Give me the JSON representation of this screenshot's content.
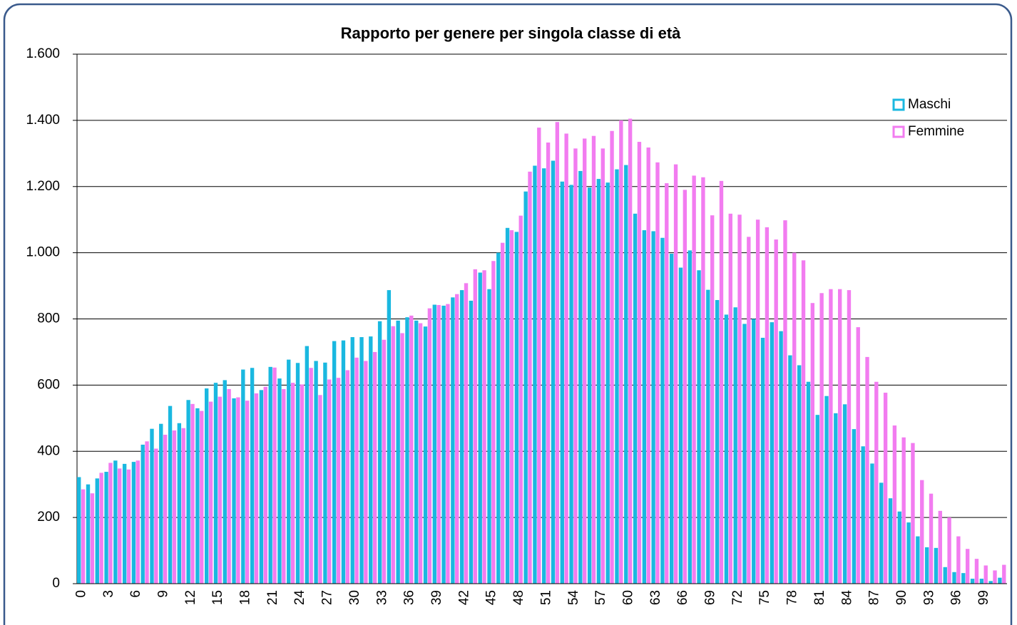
{
  "chart_data": {
    "type": "bar",
    "title": "Rapporto per genere per singola classe di età",
    "categories": [
      "0",
      null,
      null,
      "3",
      null,
      null,
      "6",
      null,
      null,
      "9",
      null,
      null,
      "12",
      null,
      null,
      "15",
      null,
      null,
      "18",
      null,
      null,
      "21",
      null,
      null,
      "24",
      null,
      null,
      "27",
      null,
      null,
      "30",
      null,
      null,
      "33",
      null,
      null,
      "36",
      null,
      null,
      "39",
      null,
      null,
      "42",
      null,
      null,
      "45",
      null,
      null,
      "48",
      null,
      null,
      "51",
      null,
      null,
      "54",
      null,
      null,
      "57",
      null,
      null,
      "60",
      null,
      null,
      "63",
      null,
      null,
      "66",
      null,
      null,
      "69",
      null,
      null,
      "72",
      null,
      null,
      "75",
      null,
      null,
      "78",
      null,
      null,
      "81",
      null,
      null,
      "84",
      null,
      null,
      "87",
      null,
      null,
      "90",
      null,
      null,
      "93",
      null,
      null,
      "96",
      null,
      null,
      "99",
      null,
      null
    ],
    "series": [
      {
        "name": "Maschi",
        "color": "#1ab8e0",
        "values": [
          322,
          300,
          318,
          338,
          372,
          362,
          368,
          420,
          468,
          483,
          537,
          485,
          555,
          530,
          590,
          607,
          615,
          560,
          647,
          652,
          585,
          655,
          620,
          677,
          667,
          718,
          673,
          668,
          733,
          735,
          745,
          745,
          747,
          793,
          887,
          795,
          805,
          795,
          777,
          843,
          840,
          865,
          887,
          855,
          940,
          890,
          1000,
          1075,
          1063,
          1185,
          1263,
          1255,
          1278,
          1215,
          1205,
          1247,
          1197,
          1223,
          1212,
          1252,
          1265,
          1118,
          1068,
          1065,
          1045,
          997,
          955,
          1007,
          947,
          888,
          857,
          813,
          835,
          785,
          800,
          743,
          790,
          763,
          690,
          660,
          610,
          510,
          567,
          515,
          542,
          467,
          415,
          363,
          305,
          258,
          218,
          185,
          143,
          110,
          108,
          50,
          35,
          32,
          15,
          15,
          8,
          18
        ]
      },
      {
        "name": "Femmine",
        "color": "#f27cf0",
        "values": [
          285,
          273,
          335,
          365,
          348,
          345,
          372,
          430,
          408,
          450,
          463,
          470,
          543,
          522,
          550,
          565,
          588,
          563,
          553,
          575,
          595,
          653,
          588,
          607,
          602,
          652,
          570,
          617,
          622,
          645,
          683,
          673,
          700,
          737,
          778,
          757,
          810,
          787,
          832,
          842,
          845,
          875,
          908,
          950,
          947,
          975,
          1030,
          1068,
          1112,
          1245,
          1378,
          1333,
          1395,
          1360,
          1315,
          1345,
          1353,
          1315,
          1368,
          1400,
          1405,
          1335,
          1318,
          1273,
          1210,
          1267,
          1190,
          1233,
          1228,
          1113,
          1217,
          1118,
          1115,
          1048,
          1100,
          1077,
          1040,
          1098,
          1000,
          977,
          848,
          878,
          890,
          890,
          887,
          775,
          685,
          610,
          577,
          478,
          442,
          425,
          313,
          272,
          220,
          200,
          143,
          105,
          75,
          55,
          40,
          57
        ]
      }
    ],
    "ylim": [
      0,
      1600
    ],
    "yticks": [
      0,
      200,
      400,
      600,
      800,
      {
        "value": 1000,
        "label": "1.000"
      },
      {
        "value": 1200,
        "label": "1.200"
      },
      {
        "value": 1400,
        "label": "1.400"
      },
      {
        "value": 1600,
        "label": "1.600"
      }
    ],
    "grid": true,
    "legend": "upper right"
  }
}
